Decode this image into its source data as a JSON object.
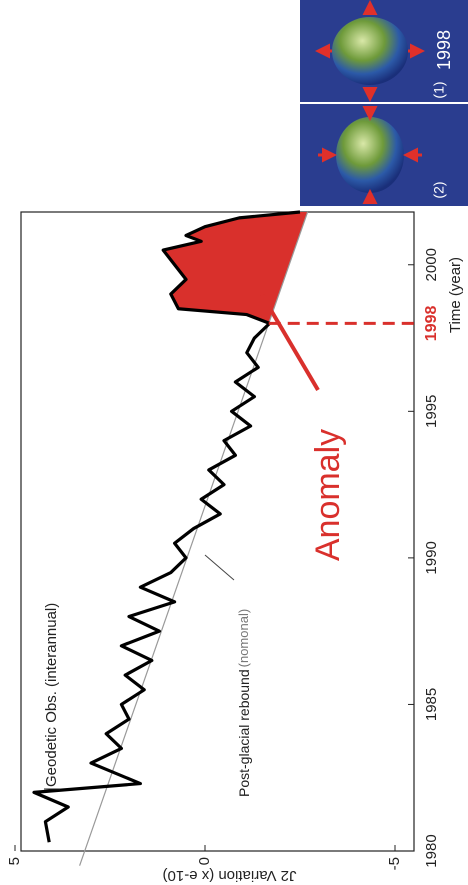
{
  "chart_data": {
    "type": "line",
    "x": [
      1980.3,
      1981,
      1981.5,
      1982,
      1982.3,
      1983,
      1983.5,
      1984,
      1984.5,
      1985,
      1985.5,
      1986,
      1986.5,
      1987,
      1987.5,
      1988,
      1988.5,
      1989,
      1989.5,
      1990,
      1990.5,
      1991,
      1991.5,
      1992,
      1992.5,
      1993,
      1993.5,
      1994,
      1994.5,
      1995,
      1995.5,
      1996,
      1996.5,
      1997,
      1997.5,
      1998,
      1998.3,
      1998.5,
      1999,
      1999.5,
      2000,
      2000.5,
      2000.8,
      2001,
      2001.3,
      2001.6,
      2001.8
    ],
    "values": [
      4.1,
      4.2,
      3.6,
      4.5,
      1.7,
      3.0,
      2.2,
      2.6,
      2.0,
      2.2,
      1.6,
      2.1,
      1.4,
      2.2,
      1.2,
      2.0,
      0.8,
      1.7,
      0.9,
      0.5,
      0.8,
      0.3,
      -0.4,
      0.1,
      -0.5,
      -0.1,
      -0.8,
      -0.5,
      -1.2,
      -0.7,
      -1.3,
      -0.8,
      -1.4,
      -1.1,
      -1.3,
      -1.7,
      -1.1,
      0.7,
      0.9,
      0.5,
      0.8,
      1.1,
      0.1,
      0.5,
      0.0,
      -0.9,
      -2.5
    ],
    "color": "#000000",
    "trend": {
      "x": [
        1979.5,
        2001.8
      ],
      "values": [
        3.3,
        -2.7
      ],
      "color": "#999999"
    },
    "anomaly_year": 1998,
    "anomaly_color": "#d9302c",
    "xlim": [
      1980,
      2001.8
    ],
    "ylim": [
      -5.5,
      5
    ],
    "xticks": [
      1980,
      1985,
      1990,
      1995,
      2000
    ],
    "yticks": [
      -5,
      0,
      5
    ],
    "x_label": "Time (year)",
    "y_label": "J2 Variation (x e-10)",
    "annotations": {
      "observed": "Geodetic Obs. (interannual)",
      "rebound": "Post-glacial rebound",
      "rebound_note": "(nomonal)",
      "anomaly": "Anomaly"
    },
    "panels": {
      "year": "1998",
      "labels": [
        "(1)",
        "(2)"
      ]
    }
  }
}
